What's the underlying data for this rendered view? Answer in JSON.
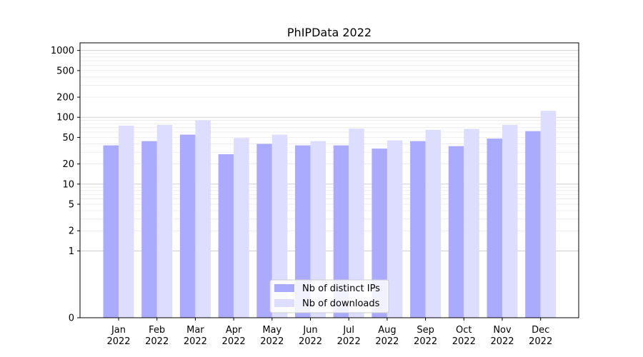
{
  "chart_data": {
    "type": "bar",
    "title": "PhIPData 2022",
    "xlabel": "",
    "ylabel": "",
    "yscale": "symlog",
    "ylim": [
      0,
      1300
    ],
    "grid": true,
    "legend_placement": "lower-center",
    "categories": [
      [
        "Jan",
        "2022"
      ],
      [
        "Feb",
        "2022"
      ],
      [
        "Mar",
        "2022"
      ],
      [
        "Apr",
        "2022"
      ],
      [
        "May",
        "2022"
      ],
      [
        "Jun",
        "2022"
      ],
      [
        "Jul",
        "2022"
      ],
      [
        "Aug",
        "2022"
      ],
      [
        "Sep",
        "2022"
      ],
      [
        "Oct",
        "2022"
      ],
      [
        "Nov",
        "2022"
      ],
      [
        "Dec",
        "2022"
      ]
    ],
    "yticks": [
      0,
      1,
      2,
      5,
      10,
      20,
      50,
      100,
      200,
      500,
      1000
    ],
    "series": [
      {
        "name": "Nb of distinct IPs",
        "color": "#aaaaff",
        "values": [
          38,
          44,
          55,
          28,
          40,
          38,
          38,
          34,
          44,
          37,
          48,
          62
        ]
      },
      {
        "name": "Nb of downloads",
        "color": "#ddddff",
        "values": [
          75,
          77,
          90,
          49,
          55,
          44,
          68,
          45,
          65,
          67,
          77,
          125
        ]
      }
    ]
  }
}
